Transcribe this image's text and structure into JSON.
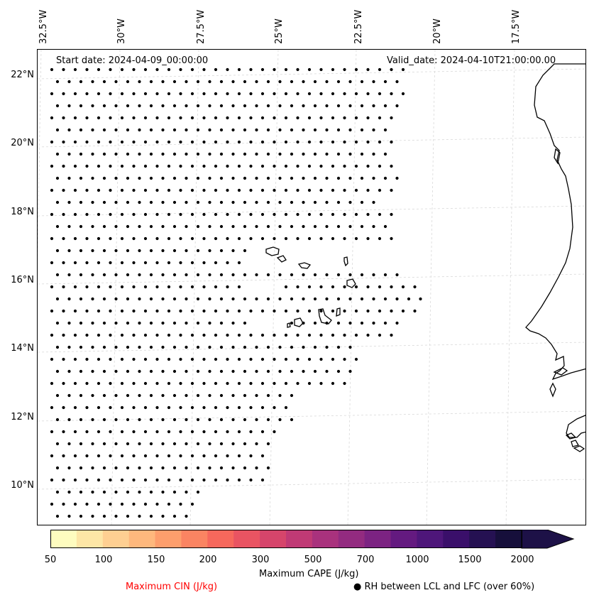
{
  "map": {
    "start_date": "Start date: 2024-04-09_00:00:00",
    "valid_date": "Valid_date: 2024-04-10T21:00:00.00",
    "lon_labels": [
      "32.5°W",
      "30°W",
      "27.5°W",
      "25°W",
      "22.5°W",
      "20°W",
      "17.5°W"
    ],
    "lat_labels": [
      "22°N",
      "20°N",
      "18°N",
      "16°N",
      "14°N",
      "12°N",
      "10°N"
    ],
    "extent": {
      "lon_min": -33.0,
      "lon_max": -16.0,
      "lat_min": 9.0,
      "lat_max": 22.8
    },
    "dot_marker": "filled-circle",
    "coastline_color": "#000000",
    "gridline_color": "#d9d9d9",
    "dot_color": "#000000"
  },
  "colorbar": {
    "ticks": [
      "50",
      "100",
      "150",
      "200",
      "300",
      "500",
      "700",
      "1000",
      "1500",
      "2000"
    ],
    "levels": [
      50,
      75,
      100,
      125,
      150,
      175,
      200,
      250,
      300,
      400,
      500,
      600,
      700,
      850,
      1000,
      1250,
      1500,
      1750,
      2000,
      2500
    ],
    "colors": [
      "#fefcbf",
      "#fde6a6",
      "#fecf92",
      "#feb87d",
      "#fd9e6c",
      "#fa8462",
      "#f6685c",
      "#e95462",
      "#d6456b",
      "#c03a75",
      "#a9327d",
      "#932b80",
      "#7c2382",
      "#641a80",
      "#4e167a",
      "#3a0f6a",
      "#251152",
      "#160f3b"
    ],
    "extend_color": "#1d1147",
    "title": "Maximum CAPE (J/kg)",
    "cin_label": "Maximum CIN (J/kg)",
    "cin_color": "#ff0000",
    "rh_label": "RH between LCL and LFC (over 60%)",
    "rh_marker": "●"
  }
}
